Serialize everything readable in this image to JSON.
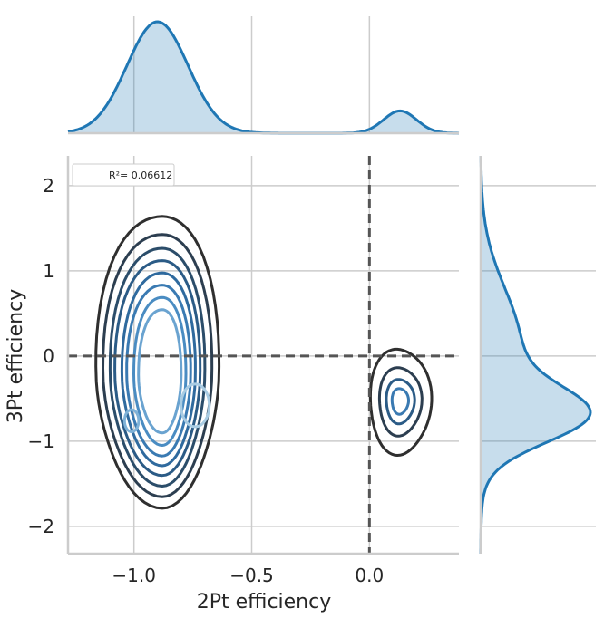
{
  "chart_data": {
    "type": "kde-joint",
    "title": "",
    "xlabel": "2Pt efficiency",
    "ylabel": "3Pt efficiency",
    "xlim": [
      -1.28,
      0.38
    ],
    "ylim": [
      -2.32,
      2.35
    ],
    "x_ticks": [
      -1.0,
      -0.5,
      0.0
    ],
    "x_tick_labels": [
      "−1.0",
      "−0.5",
      "0.0"
    ],
    "y_ticks": [
      2,
      1,
      0,
      -1,
      -2
    ],
    "y_tick_labels": [
      "2",
      "1",
      "0",
      "−1",
      "−2"
    ],
    "grid": true,
    "reference_lines": {
      "x": 0,
      "y": 0
    },
    "legend": {
      "placement": "upper-left",
      "label": "R²= 0.06612"
    },
    "contour_levels_note": "",
    "clusters": [
      {
        "center": [
          -0.88,
          -0.3
        ],
        "levels": [
          {
            "spread_x": [
              0.28,
              0.24
            ],
            "spread_y": [
              2.02,
              1.43
            ],
            "color": "#2f2f2f"
          },
          {
            "spread_x": [
              0.25,
              0.21
            ],
            "spread_y": [
              1.8,
              1.3
            ],
            "color": "#2c3e50"
          },
          {
            "spread_x": [
              0.22,
              0.18
            ],
            "spread_y": [
              1.63,
              1.18
            ],
            "color": "#2b4d6a"
          },
          {
            "spread_x": [
              0.2,
              0.16
            ],
            "spread_y": [
              1.48,
              1.06
            ],
            "color": "#2b5b86"
          },
          {
            "spread_x": [
              0.17,
              0.14
            ],
            "spread_y": [
              1.33,
              0.95
            ],
            "color": "#2f6a9e"
          },
          {
            "spread_x": [
              0.15,
              0.12
            ],
            "spread_y": [
              1.18,
              0.84
            ],
            "color": "#3a7ab2"
          },
          {
            "spread_x": [
              0.12,
              0.1
            ],
            "spread_y": [
              1.03,
              0.72
            ],
            "color": "#4a8cc2"
          },
          {
            "spread_x": [
              0.1,
              0.08
            ],
            "spread_y": [
              0.88,
              0.58
            ],
            "color": "#6aa3d0"
          }
        ]
      },
      {
        "center": [
          0.13,
          -0.53
        ],
        "levels": [
          {
            "spread_x": [
              0.13,
              0.13
            ],
            "spread_y": [
              0.62,
              0.62
            ],
            "color": "#2f2f2f"
          },
          {
            "spread_x": [
              0.09,
              0.09
            ],
            "spread_y": [
              0.4,
              0.4
            ],
            "color": "#2c3e50"
          },
          {
            "spread_x": [
              0.06,
              0.06
            ],
            "spread_y": [
              0.26,
              0.26
            ],
            "color": "#2b5b86"
          },
          {
            "spread_x": [
              0.035,
              0.035
            ],
            "spread_y": [
              0.15,
              0.15
            ],
            "color": "#3a7ab2"
          }
        ]
      }
    ],
    "inner_blobs": [
      {
        "center": [
          -1.01,
          -0.76
        ],
        "rx": 0.03,
        "ry": 0.13,
        "color": "#7fb2d8"
      },
      {
        "center": [
          -0.74,
          -0.58
        ],
        "rx": 0.06,
        "ry": 0.25,
        "color": "#a9cce3"
      }
    ],
    "marginal_x": {
      "components": [
        {
          "mean": -0.9,
          "sd": 0.13,
          "weight": 1.0
        },
        {
          "mean": 0.13,
          "sd": 0.07,
          "weight": 0.2
        }
      ],
      "color": "#1f77b4"
    },
    "marginal_y": {
      "components": [
        {
          "mean": -0.7,
          "sd": 0.32,
          "weight": 1.0
        },
        {
          "mean": 0.1,
          "sd": 0.7,
          "weight": 0.45
        }
      ],
      "color": "#1f77b4"
    }
  }
}
